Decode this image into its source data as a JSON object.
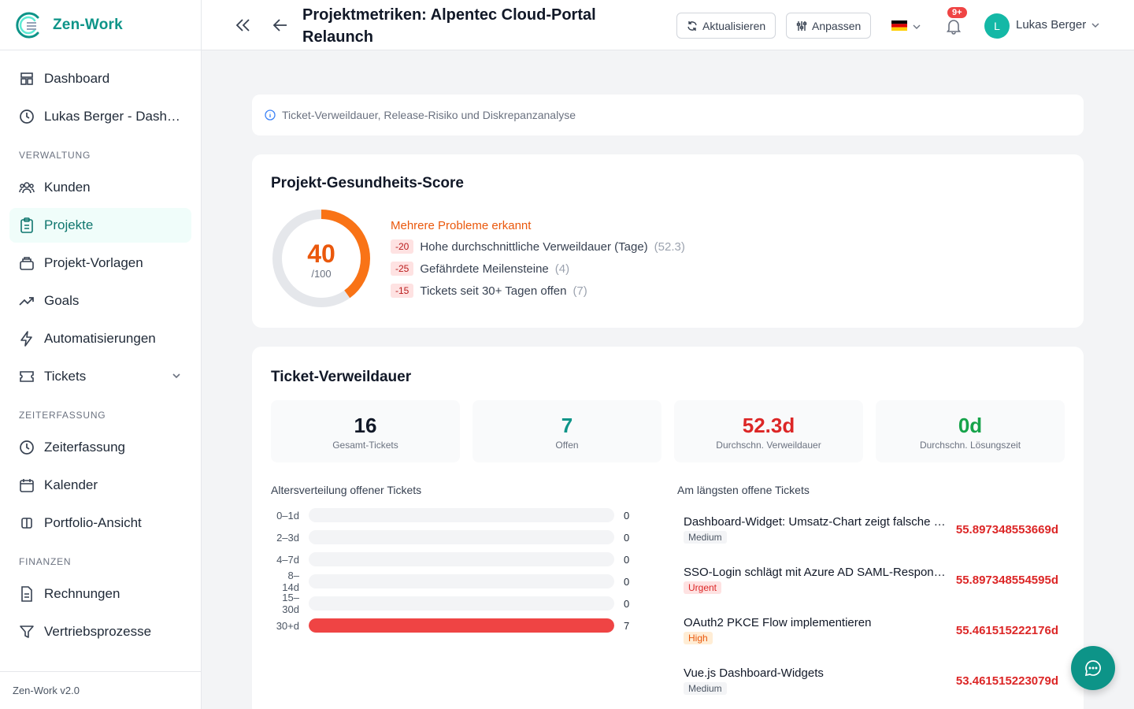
{
  "app": {
    "name": "Zen-Work",
    "version": "Zen-Work v2.0"
  },
  "sidebar": {
    "items_top": [
      {
        "label": "Dashboard",
        "icon": "dashboard-icon"
      },
      {
        "label": "Lukas Berger - Dashboard",
        "icon": "clock-icon"
      }
    ],
    "sections": [
      {
        "title": "VERWALTUNG",
        "items": [
          {
            "label": "Kunden",
            "icon": "users-icon"
          },
          {
            "label": "Projekte",
            "icon": "clipboard-icon",
            "active": true
          },
          {
            "label": "Projekt-Vorlagen",
            "icon": "template-icon"
          },
          {
            "label": "Goals",
            "icon": "trending-up-icon"
          },
          {
            "label": "Automatisierungen",
            "icon": "lightning-icon"
          },
          {
            "label": "Tickets",
            "icon": "ticket-icon",
            "expandable": true
          }
        ]
      },
      {
        "title": "ZEITERFASSUNG",
        "items": [
          {
            "label": "Zeiterfassung",
            "icon": "clock-icon"
          },
          {
            "label": "Kalender",
            "icon": "calendar-icon"
          },
          {
            "label": "Portfolio-Ansicht",
            "icon": "columns-icon"
          }
        ]
      },
      {
        "title": "FINANZEN",
        "items": [
          {
            "label": "Rechnungen",
            "icon": "document-icon"
          },
          {
            "label": "Vertriebsprozesse",
            "icon": "funnel-icon"
          }
        ]
      }
    ]
  },
  "header": {
    "title": "Projektmetriken: Alpentec Cloud-Portal Relaunch",
    "refresh_label": "Aktualisieren",
    "customize_label": "Anpassen",
    "language": "de",
    "notification_badge": "9+",
    "user_initial": "L",
    "user_name": "Lukas Berger"
  },
  "info_text": "Ticket-Verweildauer, Release-Risiko und Diskrepanzanalyse",
  "health": {
    "title": "Projekt-Gesundheits-Score",
    "score": "40",
    "score_max": "/100",
    "score_fraction": 0.4,
    "status": "Mehrere Probleme erkannt",
    "issues": [
      {
        "penalty": "-20",
        "label": "Hohe durchschnittliche Verweildauer (Tage)",
        "count": "(52.3)"
      },
      {
        "penalty": "-25",
        "label": "Gefährdete Meilensteine",
        "count": "(4)"
      },
      {
        "penalty": "-15",
        "label": "Tickets seit 30+ Tagen offen",
        "count": "(7)"
      }
    ]
  },
  "dwell": {
    "title": "Ticket-Verweildauer",
    "stats": [
      {
        "value": "16",
        "label": "Gesamt-Tickets",
        "color": "#111827"
      },
      {
        "value": "7",
        "label": "Offen",
        "color": "#0d9488"
      },
      {
        "value": "52.3d",
        "label": "Durchschn. Verweildauer",
        "color": "#dc2626"
      },
      {
        "value": "0d",
        "label": "Durchschn. Lösungszeit",
        "color": "#16a34a"
      }
    ],
    "age_title": "Altersverteilung offener Tickets",
    "age_buckets": [
      {
        "label": "0–1d",
        "count": "0",
        "fraction": 0
      },
      {
        "label": "2–3d",
        "count": "0",
        "fraction": 0
      },
      {
        "label": "4–7d",
        "count": "0",
        "fraction": 0
      },
      {
        "label": "8–14d",
        "count": "0",
        "fraction": 0
      },
      {
        "label": "15–30d",
        "count": "0",
        "fraction": 0
      },
      {
        "label": "30+d",
        "count": "7",
        "fraction": 1
      }
    ],
    "longest_title": "Am längsten offene Tickets",
    "longest": [
      {
        "title": "Dashboard-Widget: Umsatz-Chart zeigt falsche Werte",
        "priority": "Medium",
        "age": "55.897348553669d"
      },
      {
        "title": "SSO-Login schlägt mit Azure AD SAML-Response fehl",
        "priority": "Urgent",
        "age": "55.897348554595d"
      },
      {
        "title": "OAuth2 PKCE Flow implementieren",
        "priority": "High",
        "age": "55.461515222176d"
      },
      {
        "title": "Vue.js Dashboard-Widgets",
        "priority": "Medium",
        "age": "53.461515223079d"
      }
    ],
    "priority_colors": {
      "Medium": {
        "bg": "#f3f4f6",
        "fg": "#4b5563"
      },
      "Urgent": {
        "bg": "#fee2e2",
        "fg": "#dc2626"
      },
      "High": {
        "bg": "#ffedd5",
        "fg": "#ea580c"
      }
    }
  },
  "colors": {
    "accent": "#0d9488",
    "warning": "#ea580c",
    "danger": "#dc2626",
    "success": "#16a34a"
  }
}
